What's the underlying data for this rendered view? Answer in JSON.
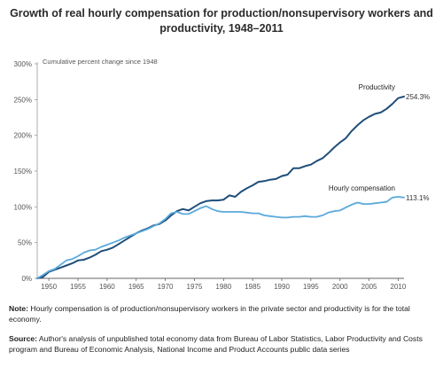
{
  "title": "Growth of real hourly compensation for production/nonsupervisory workers and productivity, 1948–2011",
  "note": {
    "label": "Note:",
    "text": " Hourly compensation is of production/nonsupervisory workers in the private sector and productivity is for the total economy."
  },
  "source": {
    "label": "Source:",
    "text": " Author's analysis of unpublished total economy data from Bureau of Labor Statistics, Labor Productivity and Costs program and Bureau of Economic Analysis, National Income and Product Accounts public data series"
  },
  "chart_data": {
    "type": "line",
    "subtitle": "Cumulative percent change since 1948",
    "xlim": [
      1948,
      2011
    ],
    "ylim": [
      0,
      300
    ],
    "x_ticks": [
      1950,
      1955,
      1960,
      1965,
      1970,
      1975,
      1980,
      1985,
      1990,
      1995,
      2000,
      2005,
      2010
    ],
    "y_ticks": [
      {
        "value": 0,
        "label": "0%"
      },
      {
        "value": 50,
        "label": "50%"
      },
      {
        "value": 100,
        "label": "100%"
      },
      {
        "value": 150,
        "label": "150%"
      },
      {
        "value": 200,
        "label": "200%"
      },
      {
        "value": 250,
        "label": "250%"
      },
      {
        "value": 300,
        "label": "300%"
      }
    ],
    "grid": false,
    "series": [
      {
        "name": "Productivity",
        "end_label": "254.3%",
        "color": "#1f4e79",
        "x": [
          1948,
          1949,
          1950,
          1951,
          1952,
          1953,
          1954,
          1955,
          1956,
          1957,
          1958,
          1959,
          1960,
          1961,
          1962,
          1963,
          1964,
          1965,
          1966,
          1967,
          1968,
          1969,
          1970,
          1971,
          1972,
          1973,
          1974,
          1975,
          1976,
          1977,
          1978,
          1979,
          1980,
          1981,
          1982,
          1983,
          1984,
          1985,
          1986,
          1987,
          1988,
          1989,
          1990,
          1991,
          1992,
          1993,
          1994,
          1995,
          1996,
          1997,
          1998,
          1999,
          2000,
          2001,
          2002,
          2003,
          2004,
          2005,
          2006,
          2007,
          2008,
          2009,
          2010,
          2011
        ],
        "y": [
          0,
          2,
          9,
          12,
          15,
          18,
          21,
          25,
          26,
          29,
          33,
          38,
          40,
          43,
          48,
          53,
          58,
          63,
          67,
          70,
          74,
          76,
          81,
          88,
          94,
          97,
          95,
          100,
          105,
          108,
          109,
          109,
          110,
          116,
          114,
          121,
          126,
          130,
          135,
          136,
          138,
          139,
          143,
          145,
          154,
          154,
          157,
          159,
          164,
          168,
          175,
          183,
          190,
          196,
          206,
          214,
          221,
          226,
          230,
          232,
          237,
          244,
          252,
          254.3
        ]
      },
      {
        "name": "Hourly compensation",
        "end_label": "113.1%",
        "color": "#5aa9dc",
        "x": [
          1948,
          1949,
          1950,
          1951,
          1952,
          1953,
          1954,
          1955,
          1956,
          1957,
          1958,
          1959,
          1960,
          1961,
          1962,
          1963,
          1964,
          1965,
          1966,
          1967,
          1968,
          1969,
          1970,
          1971,
          1972,
          1973,
          1974,
          1975,
          1976,
          1977,
          1978,
          1979,
          1980,
          1981,
          1982,
          1983,
          1984,
          1985,
          1986,
          1987,
          1988,
          1989,
          1990,
          1991,
          1992,
          1993,
          1994,
          1995,
          1996,
          1997,
          1998,
          1999,
          2000,
          2001,
          2002,
          2003,
          2004,
          2005,
          2006,
          2007,
          2008,
          2009,
          2010,
          2011
        ],
        "y": [
          0,
          5,
          10,
          13,
          19,
          25,
          27,
          31,
          36,
          39,
          40,
          44,
          47,
          50,
          53,
          57,
          60,
          63,
          66,
          69,
          73,
          77,
          83,
          91,
          93,
          90,
          90,
          94,
          98,
          101,
          97,
          94,
          93,
          93,
          93,
          93,
          92,
          91,
          91,
          88,
          87,
          86,
          85,
          85,
          86,
          86,
          87,
          86,
          86,
          88,
          92,
          94,
          95,
          99,
          103,
          106,
          104,
          104,
          105,
          106,
          107,
          113,
          114,
          113.1
        ]
      }
    ]
  }
}
